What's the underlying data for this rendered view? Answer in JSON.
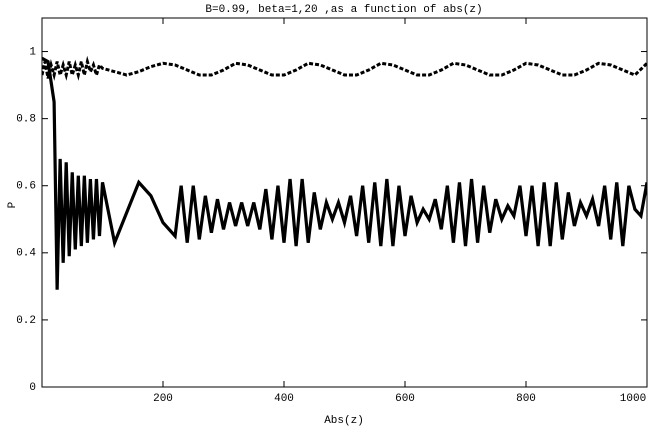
{
  "chart_data": {
    "type": "line",
    "title": "B=0.99, beta=1,20 ,as a function of abs(z)",
    "xlabel": "Abs(z)",
    "ylabel": "P",
    "xlim": [
      0,
      1000
    ],
    "ylim": [
      0,
      1.1
    ],
    "xticks": [
      200,
      400,
      600,
      800,
      1000
    ],
    "yticks": [
      0,
      0.2,
      0.4,
      0.6,
      0.8,
      1
    ],
    "series": [
      {
        "color": "#000000",
        "dash": "solid",
        "x": [
          0,
          10,
          20,
          25,
          30,
          35,
          40,
          45,
          50,
          55,
          60,
          65,
          70,
          75,
          80,
          85,
          90,
          95,
          100,
          120,
          160,
          180,
          200,
          220,
          230,
          240,
          250,
          260,
          270,
          280,
          290,
          300,
          310,
          320,
          330,
          340,
          350,
          360,
          370,
          380,
          390,
          400,
          410,
          420,
          430,
          440,
          450,
          460,
          470,
          480,
          490,
          500,
          510,
          520,
          530,
          540,
          550,
          560,
          570,
          580,
          590,
          600,
          610,
          620,
          630,
          640,
          650,
          660,
          670,
          680,
          690,
          700,
          710,
          720,
          730,
          740,
          750,
          760,
          770,
          780,
          790,
          800,
          810,
          820,
          830,
          840,
          850,
          860,
          870,
          880,
          890,
          900,
          910,
          920,
          930,
          940,
          950,
          960,
          970,
          980,
          990,
          1000
        ],
        "values": [
          0.98,
          0.97,
          0.85,
          0.29,
          0.68,
          0.37,
          0.67,
          0.39,
          0.64,
          0.41,
          0.63,
          0.42,
          0.63,
          0.43,
          0.62,
          0.44,
          0.62,
          0.45,
          0.61,
          0.43,
          0.61,
          0.57,
          0.49,
          0.45,
          0.6,
          0.43,
          0.6,
          0.44,
          0.57,
          0.46,
          0.56,
          0.47,
          0.55,
          0.48,
          0.55,
          0.48,
          0.55,
          0.47,
          0.59,
          0.44,
          0.6,
          0.43,
          0.62,
          0.42,
          0.62,
          0.43,
          0.58,
          0.47,
          0.55,
          0.5,
          0.55,
          0.49,
          0.57,
          0.45,
          0.6,
          0.43,
          0.61,
          0.42,
          0.62,
          0.42,
          0.6,
          0.45,
          0.57,
          0.49,
          0.53,
          0.5,
          0.56,
          0.47,
          0.6,
          0.43,
          0.61,
          0.42,
          0.62,
          0.43,
          0.6,
          0.46,
          0.56,
          0.5,
          0.54,
          0.51,
          0.6,
          0.45,
          0.6,
          0.42,
          0.61,
          0.42,
          0.61,
          0.44,
          0.58,
          0.48,
          0.55,
          0.51,
          0.56,
          0.48,
          0.6,
          0.44,
          0.61,
          0.42,
          0.6,
          0.53,
          0.51,
          0.61
        ]
      },
      {
        "color": "#000000",
        "dash": "dashed",
        "x": [
          0,
          5,
          10,
          15,
          20,
          25,
          30,
          35,
          40,
          45,
          50,
          55,
          60,
          65,
          70,
          75,
          80,
          85,
          90,
          95,
          100,
          120,
          140,
          160,
          180,
          200,
          220,
          240,
          260,
          280,
          300,
          320,
          340,
          360,
          380,
          400,
          420,
          440,
          460,
          480,
          500,
          520,
          540,
          560,
          580,
          600,
          620,
          640,
          660,
          680,
          700,
          720,
          740,
          760,
          780,
          800,
          820,
          840,
          860,
          880,
          900,
          920,
          940,
          960,
          980,
          1000
        ],
        "values": [
          0.93,
          0.97,
          0.92,
          0.96,
          0.93,
          0.97,
          0.93,
          0.96,
          0.93,
          0.97,
          0.93,
          0.96,
          0.93,
          0.97,
          0.93,
          0.97,
          0.94,
          0.96,
          0.93,
          0.96,
          0.95,
          0.94,
          0.93,
          0.94,
          0.955,
          0.965,
          0.96,
          0.945,
          0.93,
          0.93,
          0.945,
          0.965,
          0.96,
          0.945,
          0.93,
          0.93,
          0.945,
          0.965,
          0.96,
          0.945,
          0.93,
          0.93,
          0.945,
          0.965,
          0.96,
          0.945,
          0.93,
          0.93,
          0.945,
          0.965,
          0.96,
          0.945,
          0.93,
          0.93,
          0.945,
          0.965,
          0.96,
          0.945,
          0.93,
          0.93,
          0.945,
          0.965,
          0.96,
          0.945,
          0.93,
          0.965
        ]
      }
    ]
  }
}
